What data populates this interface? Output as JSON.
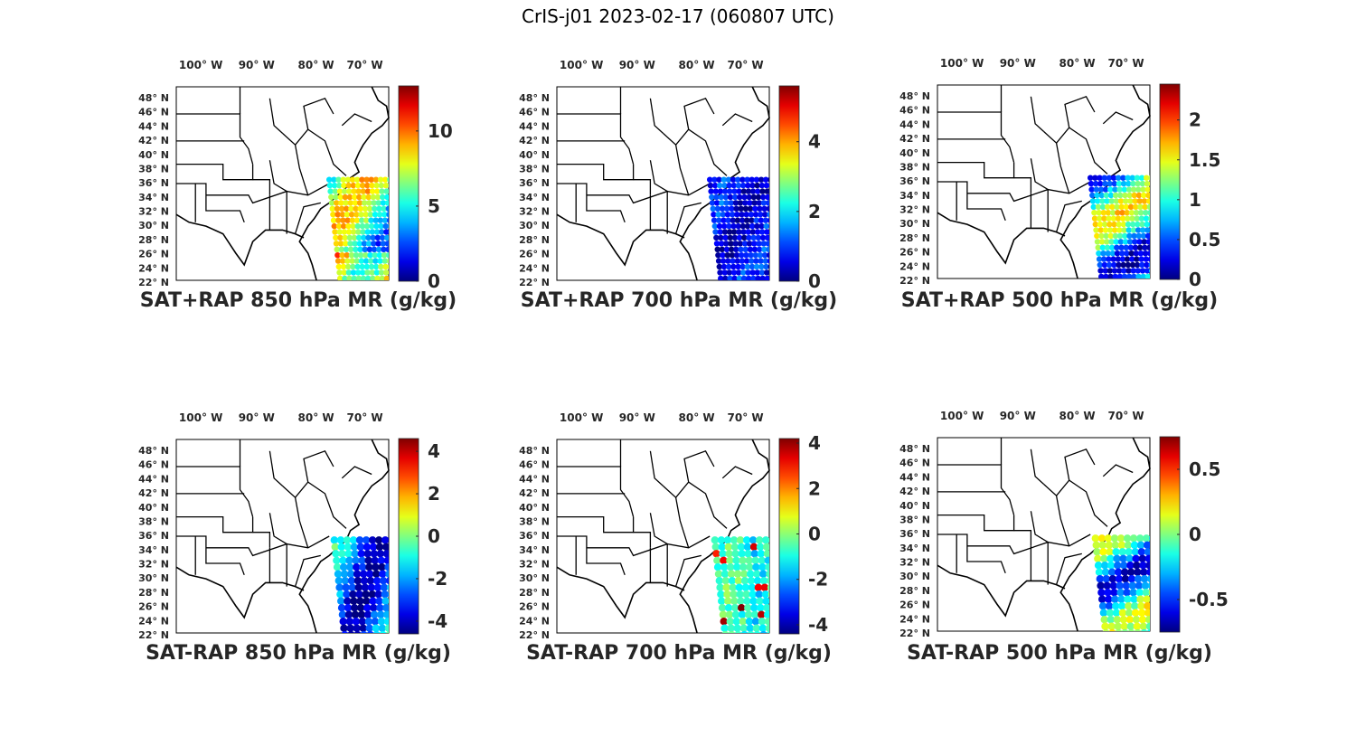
{
  "figure_title": "CrIS-j01 2023-02-17 (060807 UTC)",
  "lat_labels": [
    "48° N",
    "46° N",
    "44° N",
    "42° N",
    "40° N",
    "38° N",
    "36° N",
    "34° N",
    "32° N",
    "30° N",
    "28° N",
    "26° N",
    "24° N",
    "22° N"
  ],
  "lon_labels": [
    "100° W",
    "90° W",
    "80° W",
    "70° W"
  ],
  "colormap": "jet",
  "colors": {
    "map_outline": "#000000",
    "text": "#262626"
  },
  "panels": [
    {
      "id": "sat-rap-850-sum",
      "title": "SAT+RAP 850 hPa MR (g/kg)",
      "colorbar": {
        "min": 0,
        "max": 13,
        "ticks": [
          "0",
          "5",
          "10"
        ],
        "tick_values": [
          0,
          5,
          10
        ]
      },
      "swath": "full",
      "field": "warm"
    },
    {
      "id": "sat-rap-700-sum",
      "title": "SAT+RAP 700 hPa MR (g/kg)",
      "colorbar": {
        "min": 0,
        "max": 5.6,
        "ticks": [
          "0",
          "2",
          "4"
        ],
        "tick_values": [
          0,
          2,
          4
        ]
      },
      "swath": "full",
      "field": "low"
    },
    {
      "id": "sat-rap-500-sum",
      "title": "SAT+RAP 500 hPa MR (g/kg)",
      "colorbar": {
        "min": 0,
        "max": 2.45,
        "ticks": [
          "0",
          "0.5",
          "1",
          "1.5",
          "2"
        ],
        "tick_values": [
          0,
          0.5,
          1,
          1.5,
          2
        ]
      },
      "swath": "full",
      "field": "mid"
    },
    {
      "id": "sat-rap-850-diff",
      "title": "SAT-RAP 850 hPa MR (g/kg)",
      "colorbar": {
        "min": -4.6,
        "max": 4.6,
        "ticks": [
          "-4",
          "-2",
          "0",
          "2",
          "4"
        ],
        "tick_values": [
          -4,
          -2,
          0,
          2,
          4
        ]
      },
      "swath": "partial",
      "field": "diff850"
    },
    {
      "id": "sat-rap-700-diff",
      "title": "SAT-RAP 700 hPa MR (g/kg)",
      "colorbar": {
        "min": -4.4,
        "max": 4.2,
        "ticks": [
          "-4",
          "-2",
          "0",
          "2",
          "4"
        ],
        "tick_values": [
          -4,
          -2,
          0,
          2,
          4
        ]
      },
      "swath": "partial",
      "field": "diff700"
    },
    {
      "id": "sat-rap-500-diff",
      "title": "SAT-RAP 500 hPa MR (g/kg)",
      "colorbar": {
        "min": -0.75,
        "max": 0.75,
        "ticks": [
          "-0.5",
          "0",
          "0.5"
        ],
        "tick_values": [
          -0.5,
          0,
          0.5
        ]
      },
      "swath": "partial",
      "field": "diff500"
    }
  ]
}
